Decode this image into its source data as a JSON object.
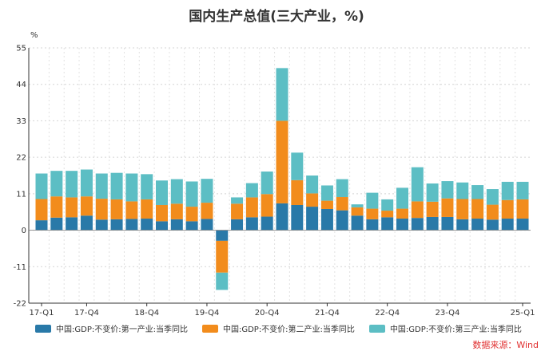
{
  "chart_data": {
    "type": "bar",
    "stacked": true,
    "title": "国内生产总值(三大产业，%)",
    "ylabel": "%",
    "ylim": [
      -22,
      55
    ],
    "yticks": [
      55,
      44,
      33,
      22,
      11,
      0,
      -11,
      -22
    ],
    "grid": true,
    "legend_position": "bottom",
    "x": [
      "17-Q1",
      "17-Q2",
      "17-Q3",
      "17-Q4",
      "18-Q1",
      "18-Q2",
      "18-Q3",
      "18-Q4",
      "19-Q1",
      "19-Q2",
      "19-Q3",
      "19-Q4",
      "20-Q1",
      "20-Q2",
      "20-Q3",
      "20-Q4",
      "21-Q1",
      "21-Q2",
      "21-Q3",
      "21-Q4",
      "22-Q1",
      "22-Q2",
      "22-Q3",
      "22-Q4",
      "23-Q1",
      "23-Q2",
      "23-Q3",
      "23-Q4",
      "24-Q1",
      "24-Q2",
      "24-Q3",
      "24-Q4",
      "25-Q1"
    ],
    "x_tick_labels": [
      "17-Q1",
      "17-Q4",
      "18-Q4",
      "19-Q4",
      "20-Q4",
      "21-Q4",
      "22-Q4",
      "23-Q4",
      "25-Q1"
    ],
    "series": [
      {
        "name": "中国:GDP:不变价:第一产业:当季同比",
        "color": "#2979a8",
        "values": [
          3.0,
          3.8,
          3.9,
          4.4,
          3.2,
          3.3,
          3.4,
          3.5,
          2.7,
          3.3,
          2.7,
          3.4,
          -3.2,
          3.3,
          3.9,
          4.1,
          8.1,
          7.6,
          7.1,
          6.4,
          6.0,
          4.4,
          3.3,
          3.9,
          3.5,
          3.7,
          4.0,
          4.0,
          3.3,
          3.5,
          3.2,
          3.5,
          3.5
        ]
      },
      {
        "name": "中国:GDP:不变价:第二产业:当季同比",
        "color": "#f28c1c",
        "values": [
          6.4,
          6.4,
          6.0,
          5.8,
          6.3,
          6.0,
          5.3,
          5.8,
          4.9,
          4.7,
          4.4,
          4.9,
          -9.6,
          4.7,
          6.0,
          6.8,
          24.9,
          7.5,
          4.0,
          2.5,
          4.0,
          2.5,
          3.2,
          2.0,
          3.0,
          5.0,
          4.6,
          5.6,
          6.1,
          5.9,
          4.5,
          5.6,
          5.8
        ]
      },
      {
        "name": "中国:GDP:不变价:第三产业:当季同比",
        "color": "#5cbec4",
        "values": [
          7.7,
          7.7,
          8.0,
          8.1,
          7.6,
          8.0,
          8.4,
          7.6,
          7.4,
          7.4,
          7.6,
          7.2,
          -5.2,
          1.9,
          4.3,
          6.8,
          15.9,
          8.3,
          5.4,
          4.6,
          5.4,
          0.9,
          4.8,
          3.4,
          6.3,
          10.3,
          5.5,
          5.2,
          5.0,
          4.2,
          4.7,
          5.5,
          5.3
        ]
      }
    ]
  },
  "source": "数据来源：Wind"
}
